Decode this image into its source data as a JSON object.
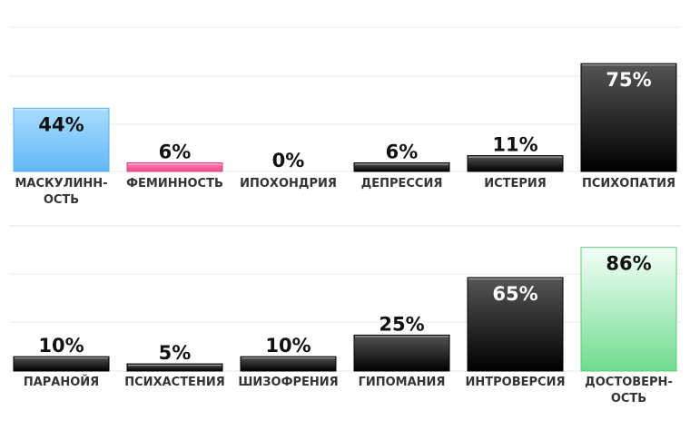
{
  "chart_data": [
    {
      "type": "bar",
      "categories": [
        "МАСКУЛИНН-|ОСТЬ",
        "ФЕМИННОСТЬ",
        "ИПОХОНДРИЯ",
        "ДЕПРЕССИЯ",
        "ИСТЕРИЯ",
        "ПСИХОПАТИЯ"
      ],
      "values": [
        44,
        6,
        0,
        6,
        11,
        75
      ],
      "value_labels": [
        "44%",
        "6%",
        "0%",
        "6%",
        "11%",
        "75%"
      ],
      "styles": [
        "blue",
        "pink",
        "dark",
        "dark",
        "dark",
        "dark"
      ],
      "ylim": [
        0,
        100
      ],
      "grid": true
    },
    {
      "type": "bar",
      "categories": [
        "ПАРАНОЙЯ",
        "ПСИХАСТЕНИЯ",
        "ШИЗОФРЕНИЯ",
        "ГИПОМАНИЯ",
        "ИНТРОВЕРСИЯ",
        "ДОСТОВЕРН-|ОСТЬ"
      ],
      "values": [
        10,
        5,
        10,
        25,
        65,
        86
      ],
      "value_labels": [
        "10%",
        "5%",
        "10%",
        "25%",
        "65%",
        "86%"
      ],
      "styles": [
        "dark",
        "dark",
        "dark",
        "dark",
        "dark",
        "green"
      ],
      "ylim": [
        0,
        100
      ],
      "grid": true
    }
  ],
  "colors": {
    "blue_top": "#a8dcff",
    "blue_bottom": "#62b8f6",
    "pink_top": "#ff7eb0",
    "pink_bottom": "#f04d8a",
    "dark_top": "#555555",
    "dark_bottom": "#000000",
    "green_top": "#f4fff8",
    "green_bottom": "#6fdb8f",
    "grid": "#e8e8e8",
    "label_dark": "#111111",
    "label_light": "#ffffff"
  }
}
